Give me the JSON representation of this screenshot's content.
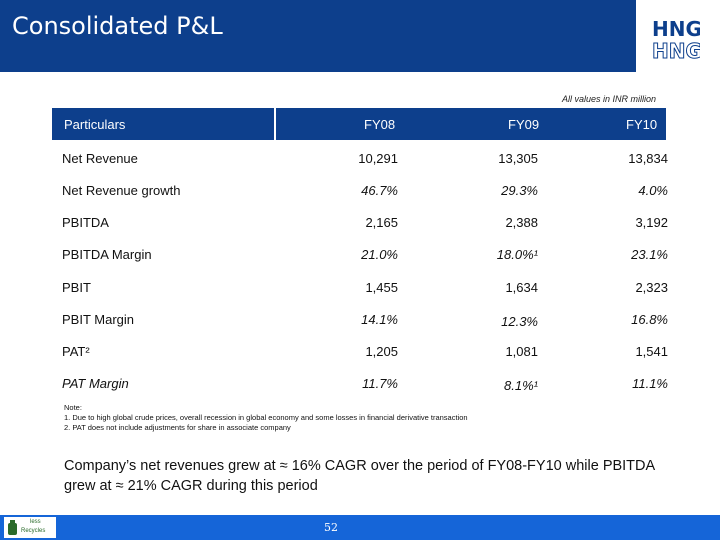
{
  "title": "Consolidated P&L",
  "logo": {
    "line1": "HNG",
    "line2": "HNG"
  },
  "units_note": "All values in INR million",
  "table": {
    "header": {
      "particulars": "Particulars",
      "fy08": "FY08",
      "fy09": "FY09",
      "fy10": "FY10"
    },
    "rows": [
      {
        "label": "Net Revenue",
        "fy08": "10,291",
        "fy09": "13,305",
        "fy10": "13,834"
      },
      {
        "label": "Net Revenue growth",
        "fy08": "46.7%",
        "fy09": "29.3%",
        "fy10": "4.0%"
      },
      {
        "label": "PBITDA",
        "fy08": "2,165",
        "fy09": "2,388",
        "fy10": "3,192"
      },
      {
        "label": "PBITDA Margin",
        "fy08": "21.0%",
        "fy09": "18.0%¹",
        "fy10": "23.1%"
      },
      {
        "label": "PBIT",
        "fy08": "1,455",
        "fy09": "1,634",
        "fy10": "2,323"
      },
      {
        "label": "PBIT Margin",
        "fy08": "14.1%",
        "fy09": "12.3%",
        "fy10": "16.8%"
      },
      {
        "label": "PAT²",
        "fy08": "1,205",
        "fy09": "1,081",
        "fy10": "1,541"
      },
      {
        "label": "PAT Margin",
        "fy08": "11.7%",
        "fy09": "8.1%¹",
        "fy10": "11.1%"
      }
    ]
  },
  "notes": {
    "heading": "Note:",
    "n1": "1. Due to high global crude prices, overall recession in global economy and some losses in financial derivative transaction",
    "n2": "2. PAT does not include adjustments for share in associate company"
  },
  "summary": "Company’s net revenues grew at ≈ 16% CAGR over the period of FY08-FY10 while PBITDA grew at ≈ 21% CAGR during this period",
  "footer": {
    "page": "52",
    "eco_badge_line1": "less",
    "eco_badge_line2": "Recycles"
  },
  "colors": {
    "title_bar": "#0d3f8c",
    "footer_bar": "#1565d8"
  }
}
